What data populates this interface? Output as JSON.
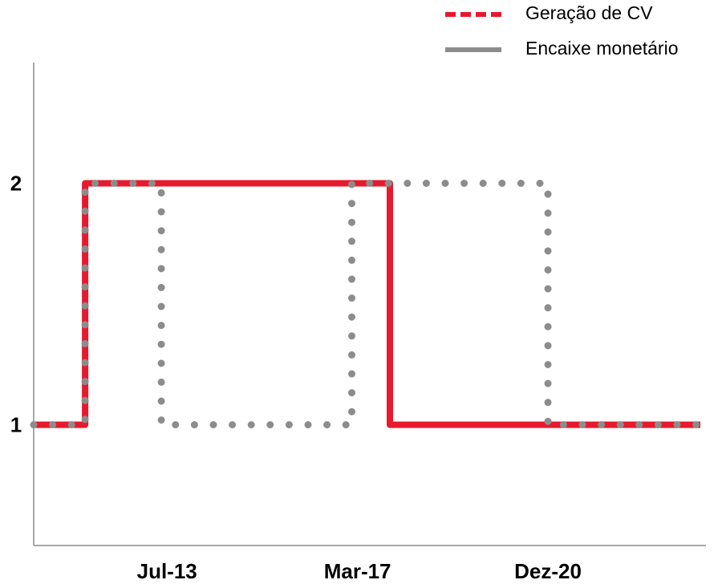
{
  "chart_data": {
    "type": "step-line",
    "series": [
      {
        "name": "Geração de CV",
        "color": "#e8192c",
        "x": [
          0.3,
          0.57,
          0.57,
          2.17,
          2.17,
          3.8
        ],
        "values": [
          1,
          1,
          2,
          2,
          1,
          1
        ]
      },
      {
        "name": "Encaixe monetário",
        "color": "#8c8c8c",
        "x": [
          0.3,
          0.57,
          0.57,
          0.97,
          0.97,
          1.97,
          1.97,
          3.0,
          3.0,
          3.8
        ],
        "values": [
          1,
          1,
          2,
          2,
          1,
          1,
          2,
          2,
          1,
          1
        ]
      }
    ],
    "xlim": [
      0.3,
      3.8
    ],
    "xticks": [
      {
        "value": 1,
        "label": "Jul-13"
      },
      {
        "value": 2,
        "label": "Mar-17"
      },
      {
        "value": 3,
        "label": "Dez-20"
      }
    ],
    "ylim": [
      0.5,
      2.5
    ],
    "yticks": [
      1,
      2
    ],
    "grid": false
  }
}
